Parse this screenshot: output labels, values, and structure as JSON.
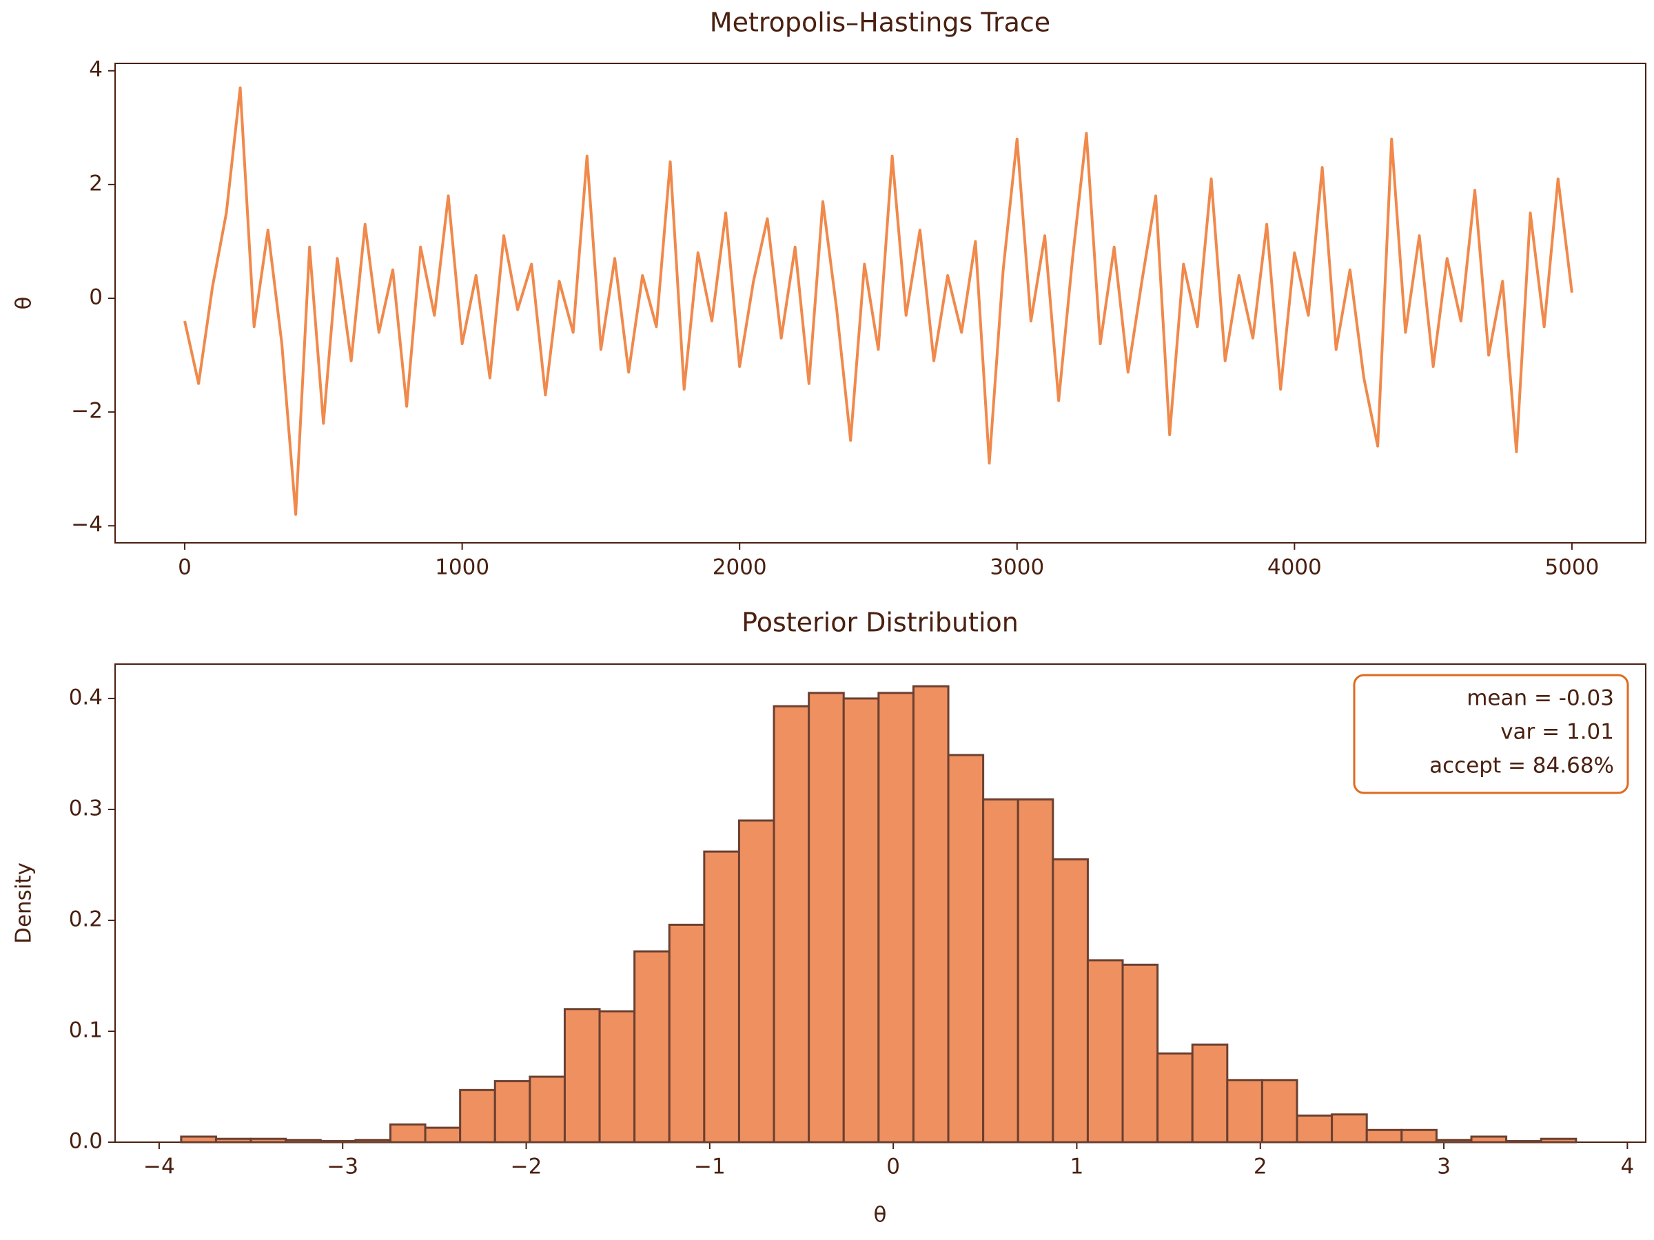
{
  "chart_data": [
    {
      "type": "line",
      "title": "Metropolis–Hastings Trace",
      "ylabel": "θ",
      "color": "#f0894b",
      "x": [
        0,
        50,
        100,
        150,
        200,
        250,
        300,
        350,
        400,
        450,
        500,
        550,
        600,
        650,
        700,
        750,
        800,
        850,
        900,
        950,
        1000,
        1050,
        1100,
        1150,
        1200,
        1250,
        1300,
        1350,
        1400,
        1450,
        1500,
        1550,
        1600,
        1650,
        1700,
        1750,
        1800,
        1850,
        1900,
        1950,
        2000,
        2050,
        2100,
        2150,
        2200,
        2250,
        2300,
        2350,
        2400,
        2450,
        2500,
        2550,
        2600,
        2650,
        2700,
        2750,
        2800,
        2850,
        2900,
        2950,
        3000,
        3050,
        3100,
        3150,
        3200,
        3250,
        3300,
        3350,
        3400,
        3450,
        3500,
        3550,
        3600,
        3650,
        3700,
        3750,
        3800,
        3850,
        3900,
        3950,
        4000,
        4050,
        4100,
        4150,
        4200,
        4250,
        4300,
        4350,
        4400,
        4450,
        4500,
        4550,
        4600,
        4650,
        4700,
        4750,
        4800,
        4850,
        4900,
        4950,
        5000
      ],
      "values": [
        -0.4,
        -1.5,
        0.2,
        1.5,
        3.7,
        -0.5,
        1.2,
        -0.8,
        -3.8,
        0.9,
        -2.2,
        0.7,
        -1.1,
        1.3,
        -0.6,
        0.5,
        -1.9,
        0.9,
        -0.3,
        1.8,
        -0.8,
        0.4,
        -1.4,
        1.1,
        -0.2,
        0.6,
        -1.7,
        0.3,
        -0.6,
        2.5,
        -0.9,
        0.7,
        -1.3,
        0.4,
        -0.5,
        2.4,
        -1.6,
        0.8,
        -0.4,
        1.5,
        -1.2,
        0.3,
        1.4,
        -0.7,
        0.9,
        -1.5,
        1.7,
        -0.2,
        -2.5,
        0.6,
        -0.9,
        2.5,
        -0.3,
        1.2,
        -1.1,
        0.4,
        -0.6,
        1.0,
        -2.9,
        0.5,
        2.8,
        -0.4,
        1.1,
        -1.8,
        0.7,
        2.9,
        -0.8,
        0.9,
        -1.3,
        0.3,
        1.8,
        -2.4,
        0.6,
        -0.5,
        2.1,
        -1.1,
        0.4,
        -0.7,
        1.3,
        -1.6,
        0.8,
        -0.3,
        2.3,
        -0.9,
        0.5,
        -1.4,
        -2.6,
        2.8,
        -0.6,
        1.1,
        -1.2,
        0.7,
        -0.4,
        1.9,
        -1.0,
        0.3,
        -2.7,
        1.5,
        -0.5,
        2.1,
        0.1
      ],
      "xlim": [
        -251,
        5266
      ],
      "xticks": [
        0,
        1000,
        2000,
        3000,
        4000,
        5000
      ],
      "ylim": [
        -4.3,
        4.13
      ],
      "yticks": [
        {
          "value": -4,
          "label": "−4"
        },
        {
          "value": -2,
          "label": "−2"
        },
        0,
        2,
        4
      ]
    },
    {
      "type": "histogram",
      "title": "Posterior Distribution",
      "xlabel": "θ",
      "ylabel": "Density",
      "color": "#ef9060",
      "edgecolor": "#6b4030",
      "bins": [
        -3.88,
        -3.69,
        -3.5,
        -3.31,
        -3.12,
        -2.93,
        -2.74,
        -2.55,
        -2.36,
        -2.17,
        -1.98,
        -1.79,
        -1.6,
        -1.41,
        -1.22,
        -1.03,
        -0.84,
        -0.65,
        -0.46,
        -0.27,
        -0.08,
        0.11,
        0.3,
        0.49,
        0.68,
        0.87,
        1.06,
        1.25,
        1.44,
        1.63,
        1.82,
        2.01,
        2.2,
        2.39,
        2.58,
        2.77,
        2.96,
        3.15,
        3.34,
        3.53,
        3.72
      ],
      "values": [
        0.005,
        0.003,
        0.003,
        0.002,
        0.001,
        0.002,
        0.016,
        0.013,
        0.047,
        0.055,
        0.059,
        0.12,
        0.118,
        0.172,
        0.196,
        0.262,
        0.29,
        0.393,
        0.405,
        0.4,
        0.405,
        0.411,
        0.349,
        0.309,
        0.309,
        0.255,
        0.164,
        0.16,
        0.08,
        0.088,
        0.056,
        0.056,
        0.024,
        0.025,
        0.011,
        0.011,
        0.002,
        0.005,
        0.001,
        0.003
      ],
      "xlim": [
        -4.24,
        4.1
      ],
      "xticks": [
        {
          "value": -4,
          "label": "−4"
        },
        {
          "value": -3,
          "label": "−3"
        },
        {
          "value": -2,
          "label": "−2"
        },
        {
          "value": -1,
          "label": "−1"
        },
        0,
        1,
        2,
        3,
        4
      ],
      "ylim": [
        0,
        0.431
      ],
      "yticks": [
        {
          "value": 0,
          "label": "0.0"
        },
        0.1,
        0.2,
        0.3,
        0.4
      ],
      "annotation": [
        "mean = -0.03",
        "var = 1.01",
        "accept = 84.68%"
      ]
    }
  ]
}
